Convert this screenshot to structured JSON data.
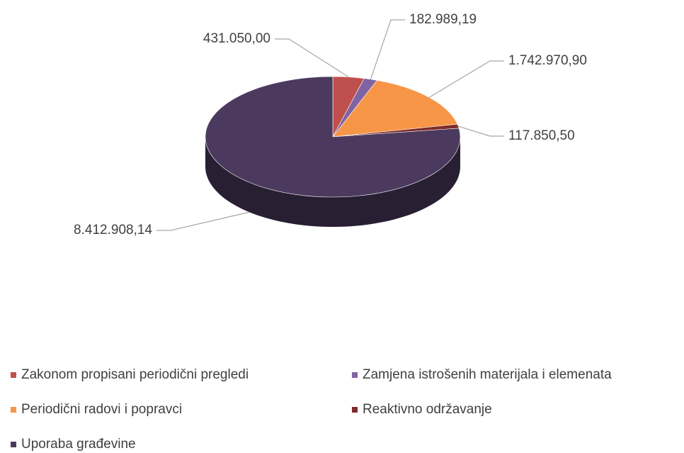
{
  "chart_data": {
    "type": "pie",
    "categories": [
      "Zakonom propisani periodični pregledi",
      "Zamjena istrošenih materijala i elemenata",
      "Periodični radovi i popravci",
      "Reaktivno održavanje",
      "Uporaba građevine"
    ],
    "values": [
      431050.0,
      182989.19,
      1742970.9,
      117850.5,
      8412908.14
    ],
    "value_labels": [
      "431.050,00",
      "182.989,19",
      "1.742.970,90",
      "117.850,50",
      "8.412.908,14"
    ],
    "colors": [
      "#c0504d",
      "#8064a2",
      "#f79646",
      "#7f2b2b",
      "#4b3a5e"
    ],
    "legend": "bottom"
  }
}
